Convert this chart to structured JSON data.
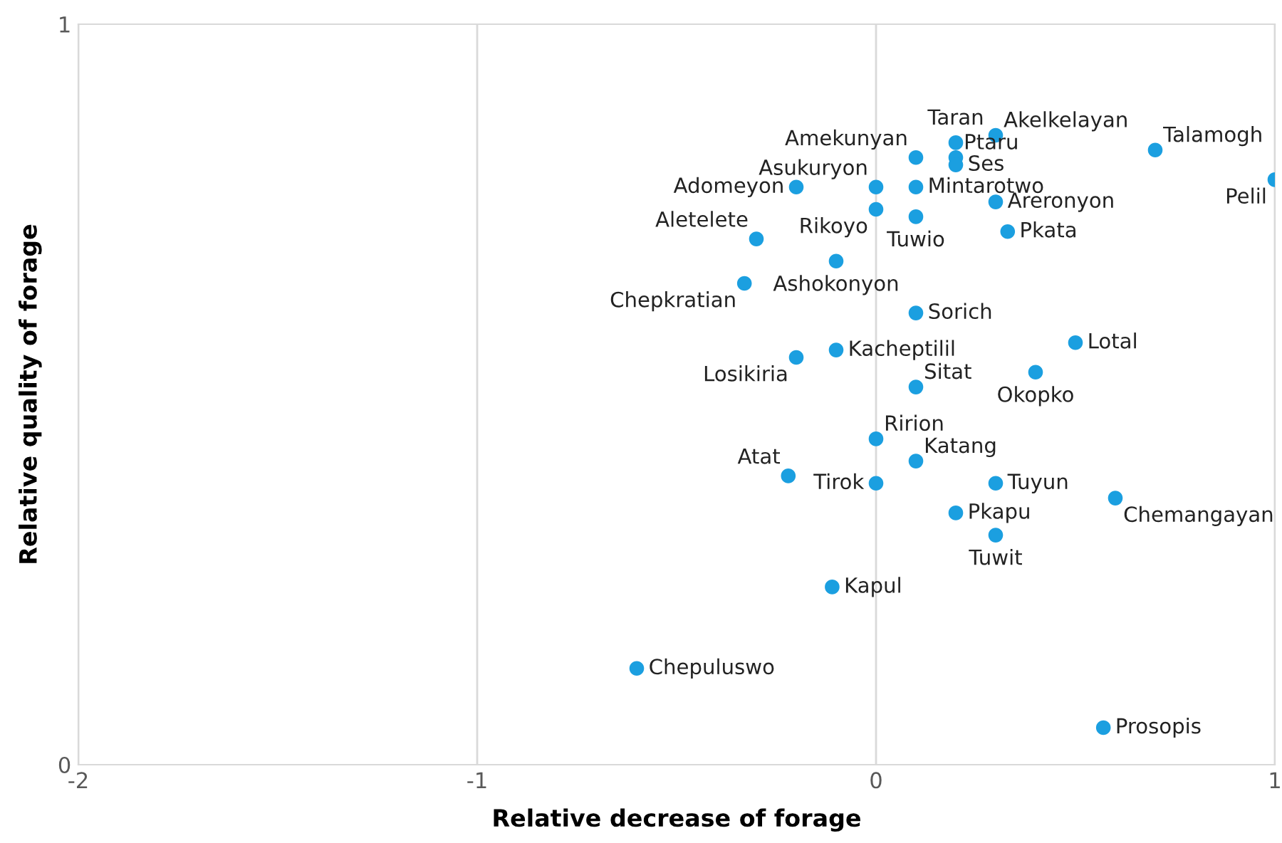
{
  "chart_data": {
    "type": "scatter",
    "xlabel": "Relative decrease of forage",
    "ylabel": "Relative quality of forage",
    "xlim": [
      -2,
      1
    ],
    "ylim": [
      0,
      1
    ],
    "xticks": [
      -2,
      -1,
      0,
      1
    ],
    "yticks": [
      0,
      1
    ],
    "grid": "x",
    "marker": "circle",
    "series": [
      {
        "color": "#1b9fe0",
        "x": [
          0.2,
          0.3,
          0.1,
          0.2,
          0.2,
          0.7,
          1.0,
          -0.2,
          0,
          0.1,
          0,
          0.3,
          0.1,
          0.33,
          -0.3,
          -0.1,
          -0.33,
          0.1,
          0.5,
          -0.1,
          -0.2,
          0.4,
          0.1,
          0,
          0.1,
          -0.22,
          0,
          0.3,
          0.6,
          0.2,
          0.3,
          -0.11,
          -0.6,
          0.57
        ],
        "values": [
          0.84,
          0.85,
          0.82,
          0.82,
          0.81,
          0.83,
          0.79,
          0.78,
          0.78,
          0.78,
          0.75,
          0.76,
          0.74,
          0.72,
          0.71,
          0.68,
          0.65,
          0.61,
          0.57,
          0.56,
          0.55,
          0.53,
          0.51,
          0.44,
          0.41,
          0.39,
          0.38,
          0.38,
          0.36,
          0.34,
          0.31,
          0.24,
          0.13,
          0.05
        ]
      }
    ],
    "annotations": [
      {
        "text": "Taran",
        "x": 0.2,
        "y": 0.84
      },
      {
        "text": "Akelkelayan",
        "x": 0.3,
        "y": 0.85
      },
      {
        "text": "Amekunyan",
        "x": 0.1,
        "y": 0.82
      },
      {
        "text": "Ptaru",
        "x": 0.2,
        "y": 0.82
      },
      {
        "text": "Ses",
        "x": 0.2,
        "y": 0.81
      },
      {
        "text": "Talamogh",
        "x": 0.7,
        "y": 0.83
      },
      {
        "text": "Pelil",
        "x": 1.0,
        "y": 0.79
      },
      {
        "text": "Adomeyon",
        "x": -0.2,
        "y": 0.78
      },
      {
        "text": "Asukuryon",
        "x": 0,
        "y": 0.78
      },
      {
        "text": "Mintarotwo",
        "x": 0.1,
        "y": 0.78
      },
      {
        "text": "Rikoyo",
        "x": 0,
        "y": 0.75
      },
      {
        "text": "Areronyon",
        "x": 0.3,
        "y": 0.76
      },
      {
        "text": "Tuwio",
        "x": 0.1,
        "y": 0.74
      },
      {
        "text": "Pkata",
        "x": 0.33,
        "y": 0.72
      },
      {
        "text": "Aletelete",
        "x": -0.3,
        "y": 0.71
      },
      {
        "text": "Ashokonyon",
        "x": -0.1,
        "y": 0.68
      },
      {
        "text": "Chepkratian",
        "x": -0.33,
        "y": 0.65
      },
      {
        "text": "Sorich",
        "x": 0.1,
        "y": 0.61
      },
      {
        "text": "Lotal",
        "x": 0.5,
        "y": 0.57
      },
      {
        "text": "Kacheptilil",
        "x": -0.1,
        "y": 0.56
      },
      {
        "text": "Losikiria",
        "x": -0.2,
        "y": 0.55
      },
      {
        "text": "Okopko",
        "x": 0.4,
        "y": 0.53
      },
      {
        "text": "Sitat",
        "x": 0.1,
        "y": 0.51
      },
      {
        "text": "Ririon",
        "x": 0,
        "y": 0.44
      },
      {
        "text": "Katang",
        "x": 0.1,
        "y": 0.41
      },
      {
        "text": "Atat",
        "x": -0.22,
        "y": 0.39
      },
      {
        "text": "Tirok",
        "x": 0,
        "y": 0.38
      },
      {
        "text": "Tuyun",
        "x": 0.3,
        "y": 0.38
      },
      {
        "text": "Chemangayan",
        "x": 0.6,
        "y": 0.36
      },
      {
        "text": "Pkapu",
        "x": 0.2,
        "y": 0.34
      },
      {
        "text": "Tuwit",
        "x": 0.3,
        "y": 0.31
      },
      {
        "text": "Kapul",
        "x": -0.11,
        "y": 0.24
      },
      {
        "text": "Chepuluswo",
        "x": -0.6,
        "y": 0.13
      },
      {
        "text": "Prosopis",
        "x": 0.57,
        "y": 0.05
      }
    ]
  }
}
